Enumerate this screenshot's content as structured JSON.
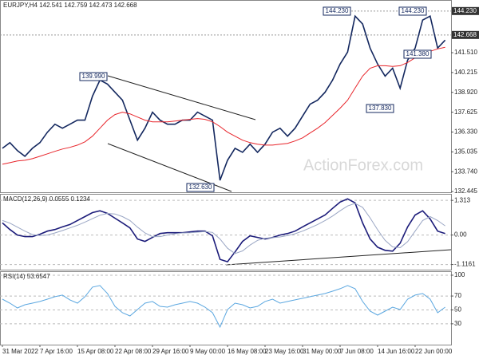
{
  "chart_data": [
    {
      "type": "line",
      "title": "EURJPY,H4  142.541 142.759 142.473 142.668",
      "series": [
        {
          "color": "#14285f",
          "values": [
            135.27,
            135.64,
            135.12,
            134.75,
            135.27,
            135.64,
            136.32,
            136.84,
            136.58,
            136.84,
            137.11,
            137.11,
            138.67,
            139.72,
            139.46,
            138.93,
            138.41,
            137.11,
            135.8,
            136.58,
            137.63,
            137.11,
            136.84,
            136.84,
            137.11,
            137.11,
            137.63,
            137.37,
            137.11,
            133.18,
            134.49,
            135.27,
            135.01,
            135.54,
            135.01,
            135.54,
            136.32,
            136.58,
            136.06,
            136.58,
            137.37,
            138.15,
            138.41,
            138.93,
            139.72,
            140.77,
            141.55,
            143.9,
            143.38,
            141.81,
            140.77,
            139.98,
            140.5,
            139.19,
            141.03,
            141.81,
            143.64,
            143.9,
            141.81,
            142.33
          ]
        },
        {
          "color": "#e8252b",
          "values": [
            134.23,
            134.33,
            134.44,
            134.49,
            134.59,
            134.75,
            134.91,
            135.07,
            135.22,
            135.33,
            135.48,
            135.69,
            136.06,
            136.58,
            137.11,
            137.47,
            137.63,
            137.52,
            137.31,
            137.11,
            137.0,
            137.0,
            137.0,
            137.05,
            137.11,
            137.16,
            137.21,
            137.16,
            137.0,
            136.69,
            136.32,
            136.06,
            135.8,
            135.64,
            135.54,
            135.48,
            135.48,
            135.54,
            135.59,
            135.75,
            135.95,
            136.27,
            136.58,
            136.95,
            137.42,
            137.89,
            138.41,
            139.2,
            139.98,
            140.5,
            140.66,
            140.66,
            140.61,
            140.66,
            140.87,
            141.18,
            141.45,
            141.6,
            141.76,
            141.86
          ]
        }
      ],
      "ylim": [
        132.4,
        144.95
      ],
      "yticks": [
        132.445,
        {
          "value": 133.74,
          "label": "133.740"
        },
        135.035,
        {
          "value": 136.33,
          "label": "136.330"
        },
        137.625,
        {
          "value": 138.92,
          "label": "138.920"
        },
        140.215,
        {
          "value": 141.51,
          "label": "141.510"
        }
      ],
      "xticks": [
        {
          "value": 0,
          "label": "31 Mar 2022"
        },
        {
          "value": 5,
          "label": "7 Apr 16:00"
        },
        {
          "value": 10,
          "label": "15 Apr 08:00"
        },
        {
          "value": 15,
          "label": "22 Apr 08:00"
        },
        {
          "value": 20,
          "label": "29 Apr 16:00"
        },
        {
          "value": 25,
          "label": "9 May 00:00"
        },
        {
          "value": 30,
          "label": "16 May 08:00"
        },
        {
          "value": 35,
          "label": "23 May 16:00"
        },
        {
          "value": 40,
          "label": "31 May 00:00"
        },
        {
          "value": 45,
          "label": "7 Jun 08:00"
        },
        {
          "value": 50,
          "label": "14 Jun 16:00"
        },
        {
          "value": 55,
          "label": "22 Jun 00:00"
        }
      ],
      "price_markers": [
        {
          "value": 144.23,
          "label": "144.230"
        },
        {
          "value": 142.668,
          "label": "142.668"
        }
      ],
      "annotations": [
        {
          "label": "139.990"
        },
        {
          "label": "132.630"
        },
        {
          "label": "144.230"
        },
        {
          "label": "144.230"
        },
        {
          "label": "141.380"
        },
        {
          "label": "137.830"
        }
      ],
      "watermark": "ActionForex.com"
    },
    {
      "type": "line",
      "title": "MACD(12,26,9) 0.0555 0.1234",
      "series": [
        {
          "color": "#1c1c7a",
          "values": [
            0.46,
            0.21,
            0,
            -0.06,
            -0.06,
            0.03,
            0.15,
            0.21,
            0.31,
            0.4,
            0.55,
            0.7,
            0.85,
            0.92,
            0.82,
            0.64,
            0.46,
            0.27,
            -0.15,
            -0.24,
            -0.09,
            0.06,
            0.09,
            0.09,
            0.09,
            0.12,
            0.15,
            0.15,
            -0.03,
            -0.92,
            -1.01,
            -0.64,
            -0.24,
            -0.03,
            -0.09,
            -0.15,
            -0.09,
            0,
            0.06,
            0.15,
            0.31,
            0.46,
            0.61,
            0.76,
            1.01,
            1.25,
            1.37,
            1.22,
            0.46,
            -0.15,
            -0.46,
            -0.58,
            -0.61,
            -0.31,
            0.31,
            0.76,
            0.92,
            0.61,
            0.15,
            0.06
          ]
        },
        {
          "color": "#9aa6c4",
          "values": [
            0.55,
            0.45,
            0.3,
            0.15,
            0.02,
            -0.02,
            0.0,
            0.08,
            0.17,
            0.27,
            0.37,
            0.49,
            0.62,
            0.75,
            0.82,
            0.8,
            0.7,
            0.55,
            0.3,
            0.08,
            -0.06,
            -0.06,
            0.0,
            0.05,
            0.08,
            0.09,
            0.11,
            0.13,
            0.1,
            -0.15,
            -0.5,
            -0.7,
            -0.6,
            -0.38,
            -0.2,
            -0.12,
            -0.1,
            -0.07,
            -0.02,
            0.05,
            0.15,
            0.27,
            0.4,
            0.55,
            0.72,
            0.92,
            1.1,
            1.2,
            1.05,
            0.65,
            0.2,
            -0.2,
            -0.45,
            -0.48,
            -0.25,
            0.15,
            0.55,
            0.7,
            0.55,
            0.35
          ]
        }
      ],
      "ylim": [
        -1.31,
        1.56
      ],
      "yticks": [
        1.313,
        {
          "value": 0,
          "label": "0.00"
        },
        -1.1161
      ]
    },
    {
      "type": "line",
      "title": "RSI(14) 53.6547",
      "series": [
        {
          "color": "#5ba7e0",
          "values": [
            65.5,
            59.8,
            52.9,
            57.5,
            59.8,
            62.1,
            65.5,
            69.0,
            71.3,
            64.4,
            59.8,
            69.0,
            82.8,
            85.1,
            73.6,
            55.2,
            46.0,
            41.4,
            50.6,
            59.8,
            62.1,
            55.2,
            54.0,
            57.5,
            59.8,
            62.1,
            59.8,
            54.0,
            46.0,
            25.3,
            50.6,
            59.8,
            57.5,
            52.9,
            55.2,
            62.1,
            65.5,
            59.8,
            62.1,
            64.4,
            66.7,
            69.0,
            71.3,
            73.6,
            77.0,
            80.5,
            85.1,
            80.5,
            62.1,
            48.3,
            42.5,
            48.3,
            54.0,
            50.6,
            65.5,
            71.3,
            73.6,
            65.5,
            46.0,
            54.0
          ]
        }
      ],
      "ylim": [
        0,
        105.7
      ],
      "yticks": [
        100,
        70,
        50,
        30
      ]
    }
  ]
}
